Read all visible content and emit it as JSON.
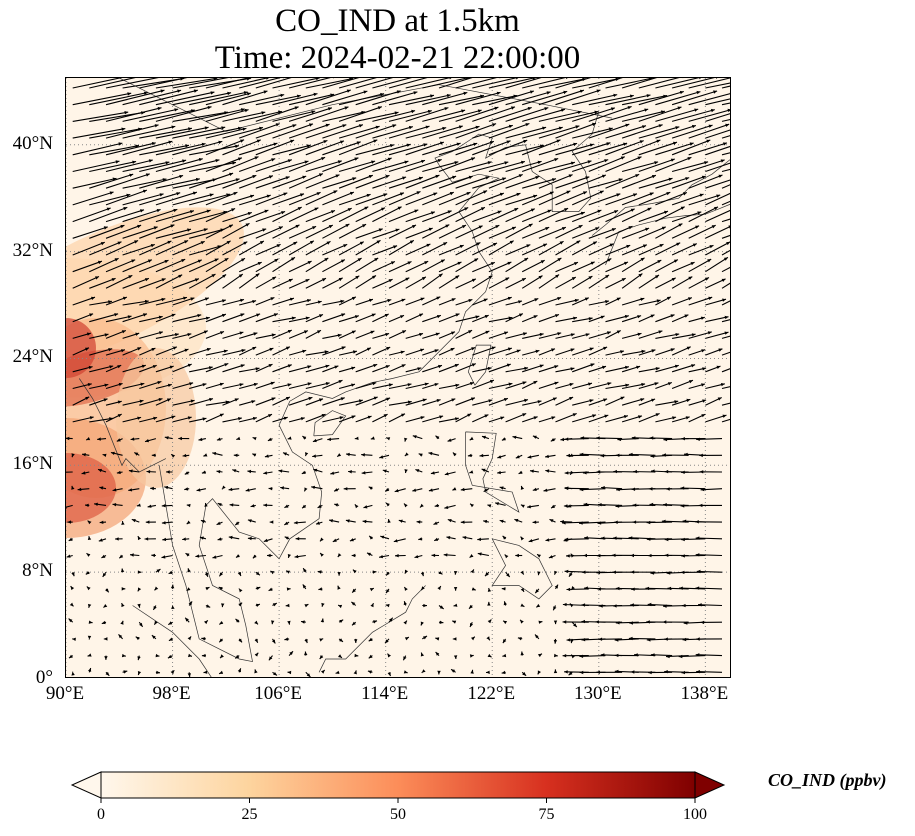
{
  "figure": {
    "title_line1": "CO_IND at 1.5km",
    "title_line2": "Time: 2024-02-21 22:00:00"
  },
  "map": {
    "projection": "PlateCarree",
    "lon_range": [
      90,
      140
    ],
    "lat_range": [
      0,
      45
    ],
    "gridlines": "dotted",
    "lat_ticks": [
      {
        "value": 0,
        "label": "0°"
      },
      {
        "value": 8,
        "label": "8°N"
      },
      {
        "value": 16,
        "label": "16°N"
      },
      {
        "value": 24,
        "label": "24°N"
      },
      {
        "value": 32,
        "label": "32°N"
      },
      {
        "value": 40,
        "label": "40°N"
      }
    ],
    "lon_ticks": [
      {
        "value": 90,
        "label": "90°E"
      },
      {
        "value": 98,
        "label": "98°E"
      },
      {
        "value": 106,
        "label": "106°E"
      },
      {
        "value": 114,
        "label": "114°E"
      },
      {
        "value": 122,
        "label": "122°E"
      },
      {
        "value": 130,
        "label": "130°E"
      },
      {
        "value": 138,
        "label": "138°E"
      }
    ],
    "overlay": "wind vectors (quiver)",
    "coastlines": true
  },
  "colorbar": {
    "label": "CO_IND (ppbv)",
    "colormap": "OrRd",
    "range": [
      0,
      100
    ],
    "extend": "both",
    "ticks": [
      {
        "value": 0,
        "label": "0"
      },
      {
        "value": 25,
        "label": "25"
      },
      {
        "value": 50,
        "label": "50"
      },
      {
        "value": 75,
        "label": "75"
      },
      {
        "value": 100,
        "label": "100"
      }
    ],
    "colors": [
      "#fff7ec",
      "#fdd49e",
      "#fc8d59",
      "#d7301f",
      "#7f0000"
    ]
  }
}
